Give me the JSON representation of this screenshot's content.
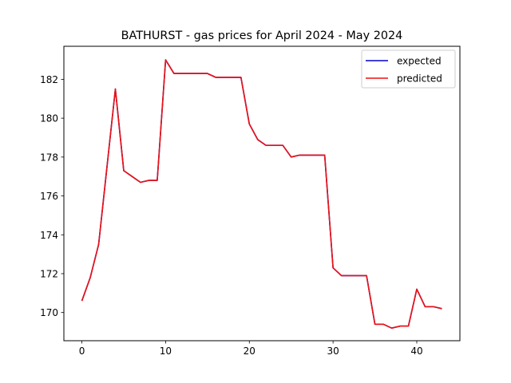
{
  "chart_data": {
    "type": "line",
    "title": "BATHURST - gas prices for April 2024 - May 2024",
    "xlabel": "",
    "ylabel": "",
    "xlim": [
      -2.15,
      45.15
    ],
    "ylim": [
      168.55,
      183.7
    ],
    "xticks": [
      0,
      10,
      20,
      30,
      40
    ],
    "yticks": [
      170,
      172,
      174,
      176,
      178,
      180,
      182
    ],
    "grid": false,
    "legend_position": "upper right",
    "x": [
      0,
      1,
      2,
      3,
      4,
      5,
      6,
      7,
      8,
      9,
      10,
      11,
      12,
      13,
      14,
      15,
      16,
      17,
      18,
      19,
      20,
      21,
      22,
      23,
      24,
      25,
      26,
      27,
      28,
      29,
      30,
      31,
      32,
      33,
      34,
      35,
      36,
      37,
      38,
      39,
      40,
      41,
      42,
      43
    ],
    "series": [
      {
        "name": "expected",
        "color": "#0000cc",
        "values": [
          170.6,
          171.8,
          173.5,
          177.5,
          181.5,
          177.3,
          177.0,
          176.7,
          176.8,
          176.8,
          183.0,
          182.3,
          182.3,
          182.3,
          182.3,
          182.3,
          182.1,
          182.1,
          182.1,
          182.1,
          179.7,
          178.9,
          178.6,
          178.6,
          178.6,
          178.0,
          178.1,
          178.1,
          178.1,
          178.1,
          172.3,
          171.9,
          171.9,
          171.9,
          171.9,
          169.4,
          169.4,
          169.2,
          169.3,
          169.3,
          171.2,
          170.3,
          170.3,
          170.2
        ]
      },
      {
        "name": "predicted",
        "color": "#ee1111",
        "values": [
          170.6,
          171.8,
          173.5,
          177.5,
          181.5,
          177.3,
          177.0,
          176.7,
          176.8,
          176.8,
          183.0,
          182.3,
          182.3,
          182.3,
          182.3,
          182.3,
          182.1,
          182.1,
          182.1,
          182.1,
          179.7,
          178.9,
          178.6,
          178.6,
          178.6,
          178.0,
          178.1,
          178.1,
          178.1,
          178.1,
          172.3,
          171.9,
          171.9,
          171.9,
          171.9,
          169.4,
          169.4,
          169.2,
          169.3,
          169.3,
          171.2,
          170.3,
          170.3,
          170.2
        ]
      }
    ]
  }
}
